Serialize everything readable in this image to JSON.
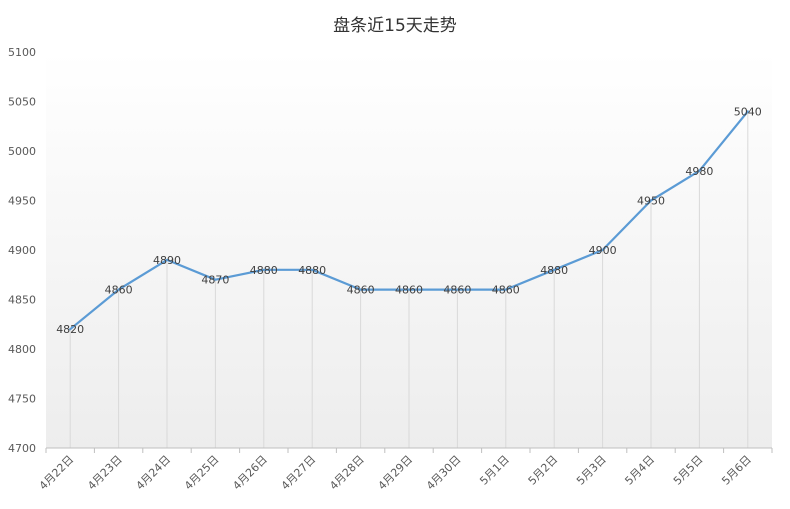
{
  "chart_data": {
    "type": "line",
    "title": "盘条近15天走势",
    "xlabel": "",
    "ylabel": "",
    "categories": [
      "4月22日",
      "4月23日",
      "4月24日",
      "4月25日",
      "4月26日",
      "4月27日",
      "4月28日",
      "4月29日",
      "4月30日",
      "5月1日",
      "5月2日",
      "5月3日",
      "5月4日",
      "5月5日",
      "5月6日"
    ],
    "series": [
      {
        "values": [
          4820,
          4860,
          4890,
          4870,
          4880,
          4880,
          4860,
          4860,
          4860,
          4860,
          4880,
          4900,
          4950,
          4980,
          5040
        ]
      }
    ],
    "ylim": [
      4700,
      5100
    ],
    "yticks": [
      4700,
      4750,
      4800,
      4850,
      4900,
      4950,
      5000,
      5050,
      5100
    ],
    "grid": "vertical drop lines",
    "legend": "none",
    "colors": {
      "line": "#5B9BD5",
      "dropline": "#D9D9D9",
      "axis": "#BFBFBF",
      "bg_top": "#FFFFFF",
      "bg_bottom": "#EDEDED"
    }
  }
}
